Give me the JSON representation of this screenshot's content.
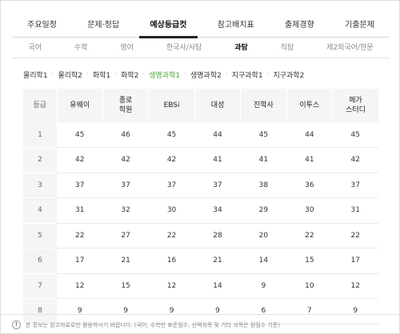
{
  "main_tabs": [
    {
      "label": "주요일정"
    },
    {
      "label": "문제·정답"
    },
    {
      "label": "예상등급컷"
    },
    {
      "label": "참고배치표"
    },
    {
      "label": "출제경향"
    },
    {
      "label": "기출문제"
    }
  ],
  "main_tab_active": "예상등급컷",
  "sub_tabs": [
    {
      "label": "국어"
    },
    {
      "label": "수학"
    },
    {
      "label": "영어"
    },
    {
      "label": "한국사/사탐"
    },
    {
      "label": "과탐"
    },
    {
      "label": "직탐"
    },
    {
      "label": "제2외국어/한문"
    }
  ],
  "sub_tab_active": "과탐",
  "subject_filters": [
    {
      "label": "물리학1"
    },
    {
      "label": "물리학2"
    },
    {
      "label": "화학1"
    },
    {
      "label": "화학2"
    },
    {
      "label": "생명과학1"
    },
    {
      "label": "생명과학2"
    },
    {
      "label": "지구과학1"
    },
    {
      "label": "지구과학2"
    }
  ],
  "subject_filter_active": "생명과학1",
  "active_color": "#4aa63a",
  "table": {
    "headers": [
      "등급",
      "유웨이",
      "종로\n학원",
      "EBSi",
      "대성",
      "진학사",
      "이투스",
      "메가\n스터디"
    ],
    "rows": [
      [
        "1",
        "45",
        "46",
        "45",
        "44",
        "45",
        "44",
        "45"
      ],
      [
        "2",
        "42",
        "42",
        "42",
        "41",
        "41",
        "41",
        "42"
      ],
      [
        "3",
        "37",
        "37",
        "37",
        "37",
        "38",
        "36",
        "37"
      ],
      [
        "4",
        "31",
        "32",
        "30",
        "34",
        "29",
        "30",
        "31"
      ],
      [
        "5",
        "22",
        "27",
        "22",
        "28",
        "20",
        "22",
        "22"
      ],
      [
        "6",
        "17",
        "21",
        "16",
        "21",
        "14",
        "15",
        "17"
      ],
      [
        "7",
        "12",
        "15",
        "12",
        "14",
        "9",
        "10",
        "12"
      ],
      [
        "8",
        "9",
        "9",
        "9",
        "9",
        "6",
        "7",
        "9"
      ]
    ]
  },
  "footer": {
    "icon": "info-icon",
    "icon_glyph": "!",
    "notice": "본 정보는 참고자료로만 활용하시기 바랍니다. (국어, 수학만 표준점수, 선택과목 및 기타 과목은 원점수 기준)"
  }
}
